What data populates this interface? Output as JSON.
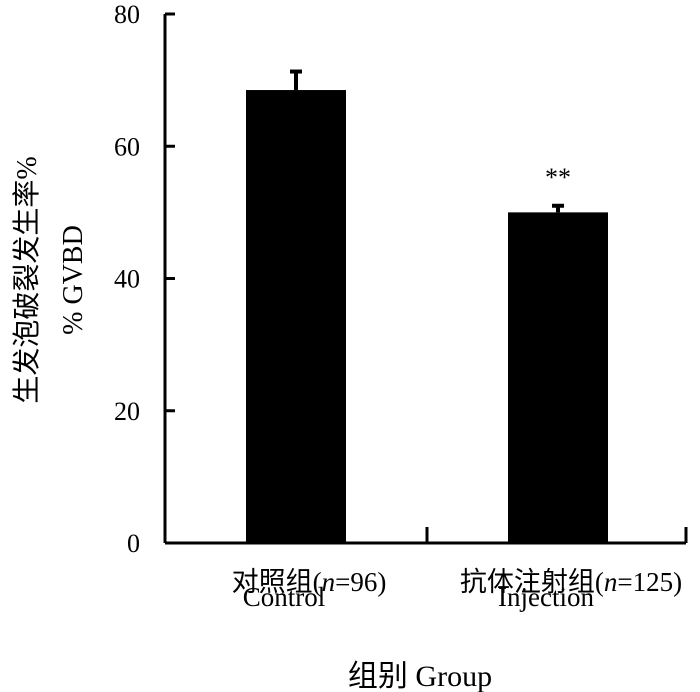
{
  "chart_data": {
    "type": "bar",
    "categories": [
      {
        "label_cn": "对照组(",
        "n_letter": "n",
        "n_rest": "=96)",
        "label_en": "Control"
      },
      {
        "label_cn": "抗体注射组(",
        "n_letter": "n",
        "n_rest": "=125)",
        "label_en": "Injection"
      }
    ],
    "values": [
      68.5,
      50.0
    ],
    "errors": [
      2.8,
      1.0
    ],
    "annotations": [
      "",
      "**"
    ],
    "ylabel_cn": "生发泡破裂发生率%",
    "ylabel_en": "% GVBD",
    "xlabel": "组别 Group",
    "ylim": [
      0,
      80
    ],
    "yticks": [
      0,
      20,
      40,
      60,
      80
    ],
    "bar_color": "#000000"
  }
}
